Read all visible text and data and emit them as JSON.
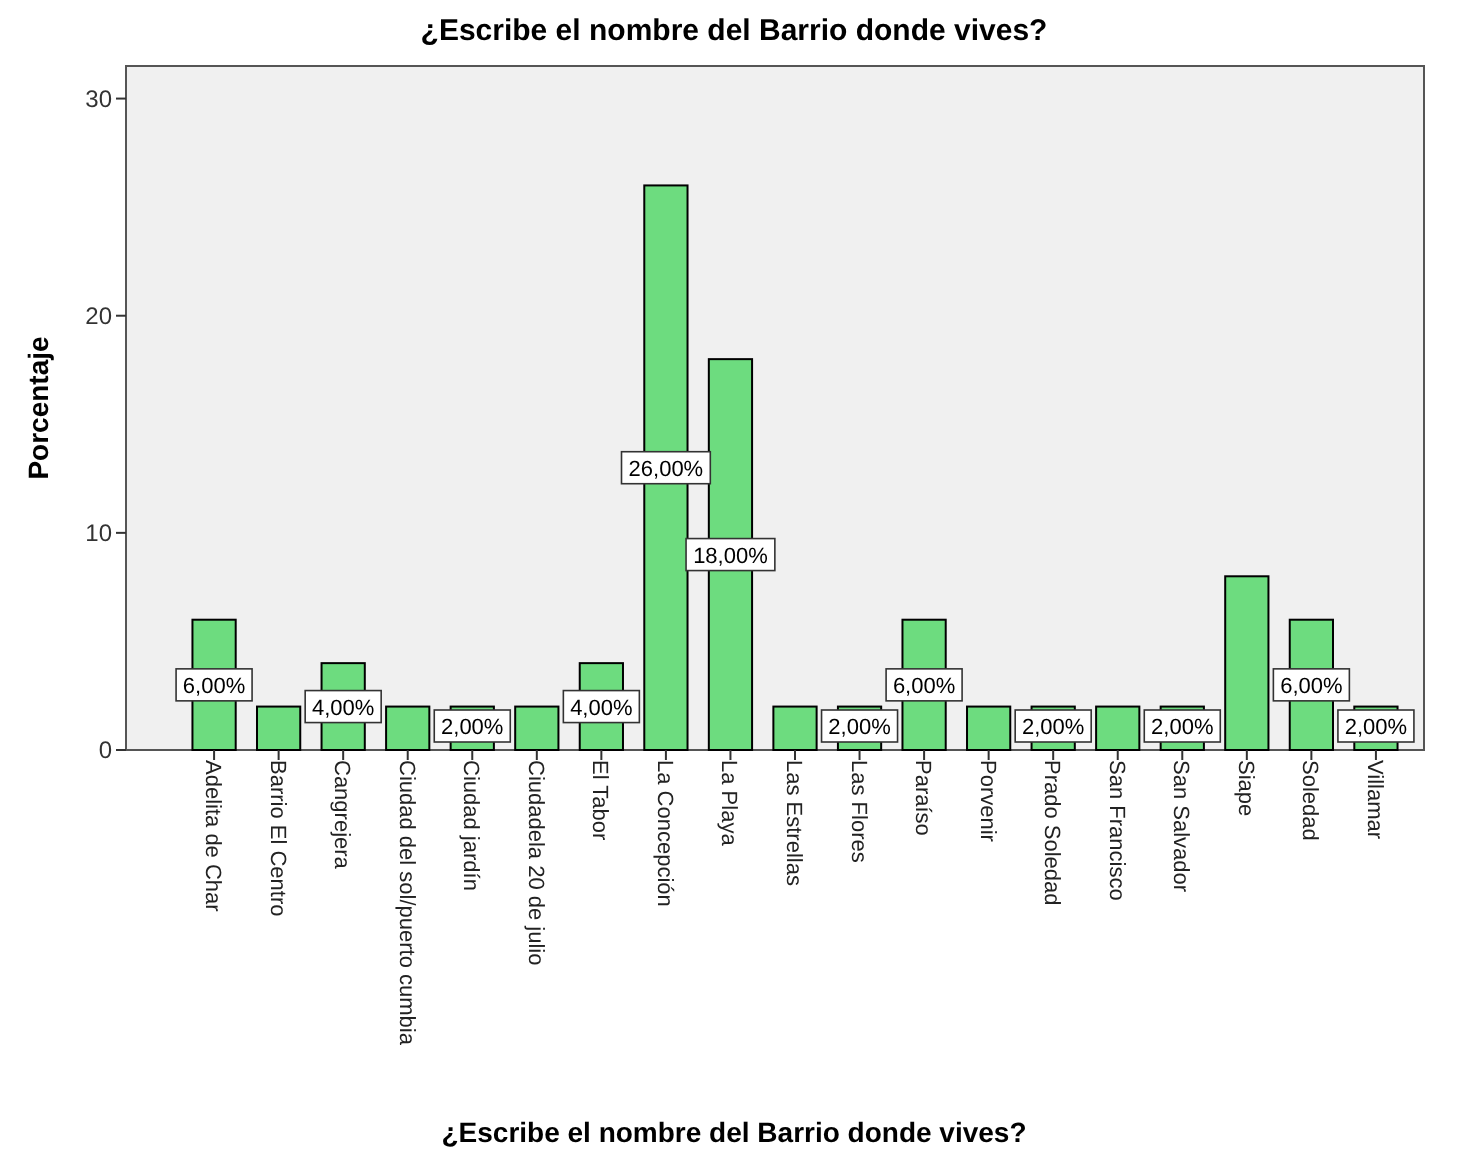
{
  "chart_data": {
    "type": "bar",
    "title": "¿Escribe el nombre del Barrio donde vives?",
    "xlabel": "¿Escribe el nombre del Barrio donde vives?",
    "ylabel": "Porcentaje",
    "categories": [
      "Adelita de Char",
      "Barrio El Centro",
      "Cangrejera",
      "Ciudad del sol/puerto cumbia",
      "Ciudad jardín",
      "Ciudadela 20 de julio",
      "El Tabor",
      "La Concepción",
      "La Playa",
      "Las Estrellas",
      "Las Flores",
      "Paraíso",
      "Porvenir",
      "Prado Soledad",
      "San Francisco",
      "San Salvador",
      "Siape",
      "Soledad",
      "Villamar"
    ],
    "values": [
      6,
      2,
      4,
      2,
      2,
      2,
      4,
      26,
      18,
      2,
      2,
      6,
      2,
      2,
      2,
      2,
      8,
      6,
      2
    ],
    "value_labels": [
      "6,00%",
      null,
      "4,00%",
      null,
      "2,00%",
      null,
      "4,00%",
      "26,00%",
      "18,00%",
      null,
      "2,00%",
      "6,00%",
      null,
      "2,00%",
      null,
      "2,00%",
      null,
      "6,00%",
      "2,00%"
    ],
    "color": "#6ddc7f",
    "ylim": [
      0,
      31.5
    ],
    "yticks": [
      0,
      10,
      20,
      30
    ],
    "grid": false
  }
}
